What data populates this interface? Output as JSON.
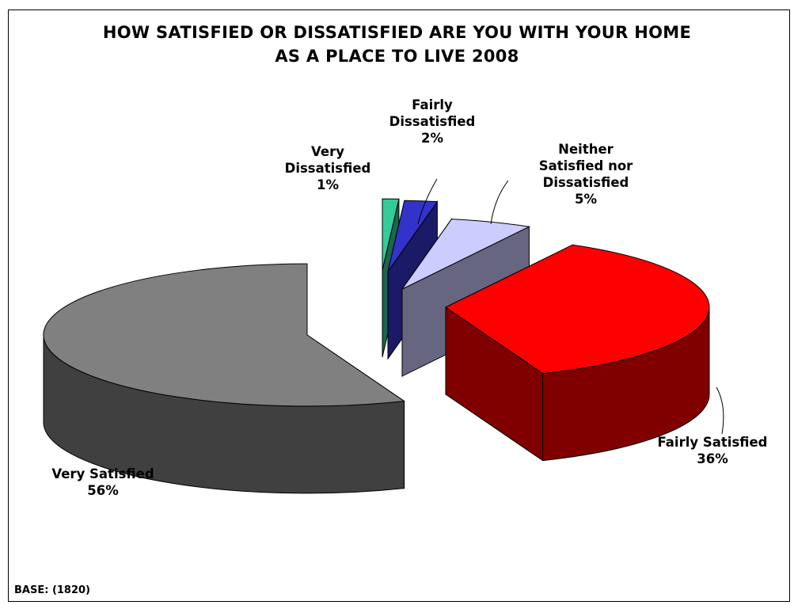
{
  "chart_data": {
    "type": "pie",
    "title": "HOW SATISFIED OR DISSATISFIED ARE YOU WITH YOUR HOME AS A PLACE TO LIVE 2008",
    "title_lines": [
      "HOW SATISFIED OR DISSATISFIED ARE YOU WITH YOUR HOME",
      "AS A PLACE TO LIVE 2008"
    ],
    "slices": [
      {
        "label": "Very Satisfied",
        "label_lines": [
          "Very Satisfied"
        ],
        "value": 56,
        "value_label": "56%",
        "color": "#808080",
        "side_color": "#404040"
      },
      {
        "label": "Fairly Satisfied",
        "label_lines": [
          "Fairly Satisfied"
        ],
        "value": 36,
        "value_label": "36%",
        "color": "#ff0000",
        "side_color": "#800000"
      },
      {
        "label": "Neither Satisfied nor Dissatisfied",
        "label_lines": [
          "Neither",
          "Satisfied nor",
          "Dissatisfied"
        ],
        "value": 5,
        "value_label": "5%",
        "color": "#ccccff",
        "side_color": "#666680"
      },
      {
        "label": "Fairly Dissatisfied",
        "label_lines": [
          "Fairly",
          "Dissatisfied"
        ],
        "value": 2,
        "value_label": "2%",
        "color": "#3333cc",
        "side_color": "#1a1a66"
      },
      {
        "label": "Very Dissatisfied",
        "label_lines": [
          "Very",
          "Dissatisfied"
        ],
        "value": 1,
        "value_label": "1%",
        "color": "#33cc99",
        "side_color": "#1a664d"
      }
    ],
    "style": "3d-exploded"
  },
  "footer": {
    "base_note": "BASE: (1820)"
  }
}
